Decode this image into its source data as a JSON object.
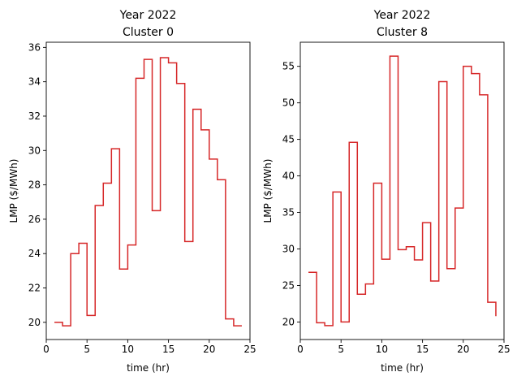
{
  "chart_data": [
    {
      "type": "line",
      "step": "post",
      "title": "Year 2022",
      "subtitle": "Cluster 0",
      "xlabel": "time (hr)",
      "ylabel": "LMP ($/MWh)",
      "xlim": [
        0,
        25
      ],
      "ylim": [
        19.0,
        36.3
      ],
      "xticks": [
        0,
        5,
        10,
        15,
        20,
        25
      ],
      "yticks": [
        20,
        22,
        24,
        26,
        28,
        30,
        32,
        34,
        36
      ],
      "color": "#d62728",
      "x": [
        1,
        2,
        3,
        4,
        5,
        6,
        7,
        8,
        9,
        10,
        11,
        12,
        13,
        14,
        15,
        16,
        17,
        18,
        19,
        20,
        21,
        22,
        23,
        24
      ],
      "y": [
        20.0,
        19.8,
        24.0,
        24.6,
        20.4,
        26.8,
        28.1,
        30.1,
        23.1,
        24.5,
        34.2,
        35.3,
        26.5,
        35.4,
        35.1,
        33.9,
        24.7,
        32.4,
        31.2,
        29.5,
        28.3,
        20.2,
        19.8,
        19.8
      ]
    },
    {
      "type": "line",
      "step": "post",
      "title": "Year 2022",
      "subtitle": "Cluster 8",
      "xlabel": "time (hr)",
      "ylabel": "LMP ($/MWh)",
      "xlim": [
        0,
        25
      ],
      "ylim": [
        17.6,
        58.3
      ],
      "xticks": [
        0,
        5,
        10,
        15,
        20,
        25
      ],
      "yticks": [
        20,
        25,
        30,
        35,
        40,
        45,
        50,
        55
      ],
      "color": "#d62728",
      "x": [
        1,
        2,
        3,
        4,
        5,
        6,
        7,
        8,
        9,
        10,
        11,
        12,
        13,
        14,
        15,
        16,
        17,
        18,
        19,
        20,
        21,
        22,
        23,
        24
      ],
      "y": [
        26.8,
        19.9,
        19.5,
        37.8,
        20.0,
        44.6,
        23.8,
        25.2,
        39.0,
        28.6,
        56.4,
        29.9,
        30.3,
        28.5,
        33.6,
        25.6,
        52.9,
        27.3,
        35.6,
        55.0,
        54.0,
        51.1,
        22.7,
        20.8
      ]
    }
  ]
}
